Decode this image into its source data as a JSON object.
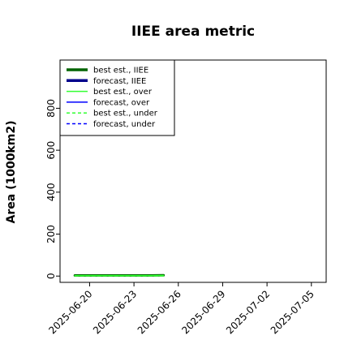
{
  "chart_data": {
    "type": "line",
    "title": "IIEE area metric",
    "xlabel": "",
    "ylabel": "Area (1000km2)",
    "x_ticks": [
      "2025-06-20",
      "2025-06-23",
      "2025-06-26",
      "2025-06-29",
      "2025-07-02",
      "2025-07-05"
    ],
    "x_tick_colors": [
      "#000000",
      "#000000",
      "#2ca02c",
      "#000000",
      "#000000",
      "#000000"
    ],
    "xlim": [
      "2025-06-18",
      "2025-07-06"
    ],
    "y_ticks": [
      0,
      200,
      400,
      600,
      800
    ],
    "ylim": [
      -30,
      1030
    ],
    "grid": false,
    "legend_position": "top-left",
    "series": [
      {
        "name": "best est., IIEE",
        "color": "#006400",
        "style": "solid",
        "width": "thick",
        "x": [
          "2025-06-19",
          "2025-06-20",
          "2025-06-21",
          "2025-06-22",
          "2025-06-23",
          "2025-06-24",
          "2025-06-25"
        ],
        "y": [
          3,
          3,
          3,
          3,
          3,
          3,
          4
        ]
      },
      {
        "name": "forecast, IIEE",
        "color": "#00008b",
        "style": "solid",
        "width": "thick",
        "x": [],
        "y": []
      },
      {
        "name": "best est., over",
        "color": "#32ff32",
        "style": "solid",
        "width": "thin",
        "x": [
          "2025-06-19",
          "2025-06-20",
          "2025-06-21",
          "2025-06-22",
          "2025-06-23",
          "2025-06-24",
          "2025-06-25"
        ],
        "y": [
          2,
          2,
          2,
          2,
          2,
          2,
          3
        ]
      },
      {
        "name": "forecast, over",
        "color": "#0000ff",
        "style": "solid",
        "width": "thin",
        "x": [],
        "y": []
      },
      {
        "name": "best est., under",
        "color": "#32ff32",
        "style": "dashed",
        "width": "thin",
        "x": [
          "2025-06-19",
          "2025-06-20",
          "2025-06-21",
          "2025-06-22",
          "2025-06-23",
          "2025-06-24",
          "2025-06-25"
        ],
        "y": [
          1,
          1,
          1,
          1,
          1,
          1,
          1
        ]
      },
      {
        "name": "forecast, under",
        "color": "#0000ff",
        "style": "dashed",
        "width": "thin",
        "x": [],
        "y": []
      }
    ]
  }
}
